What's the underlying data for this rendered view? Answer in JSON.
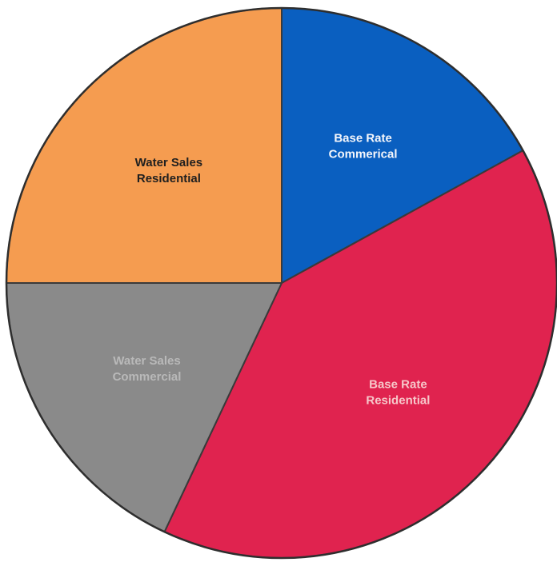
{
  "chart_data": {
    "type": "pie",
    "title": "",
    "start_angle_deg": 0,
    "direction": "clockwise",
    "slices": [
      {
        "label_lines": [
          "Base Rate",
          "Commerical"
        ],
        "value": 17,
        "color": "#0a5fc0",
        "label_color": "#f4f6fb"
      },
      {
        "label_lines": [
          "Base Rate",
          "Residential"
        ],
        "value": 40,
        "color": "#e0234f",
        "label_color": "#f6c7c9"
      },
      {
        "label_lines": [
          "Water Sales",
          "Commercial"
        ],
        "value": 18,
        "color": "#8a8a8a",
        "label_color": "#b9b9b9"
      },
      {
        "label_lines": [
          "Water Sales",
          "Residential"
        ],
        "value": 25,
        "color": "#f59c50",
        "label_color": "#1f1f1f"
      }
    ]
  }
}
